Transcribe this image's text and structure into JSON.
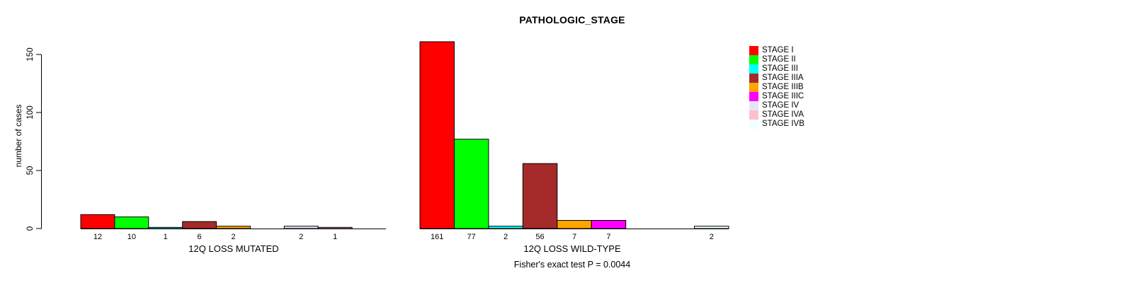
{
  "chart_data": {
    "type": "bar",
    "title": "PATHOLOGIC_STAGE",
    "ylabel": "number of cases",
    "ylim": [
      0,
      150
    ],
    "yticks": [
      0,
      50,
      100,
      150
    ],
    "grid": false,
    "legend_position": "right",
    "categories": [
      "STAGE I",
      "STAGE II",
      "STAGE III",
      "STAGE IIIA",
      "STAGE IIIB",
      "STAGE IIIC",
      "STAGE IV",
      "STAGE IVA",
      "STAGE IVB"
    ],
    "colors": [
      "#FF0000",
      "#00FF00",
      "#00FFFF",
      "#A52A2A",
      "#FFA500",
      "#FF00FF",
      "#E6E6FA",
      "#FFC0CB",
      "#F0FFFF"
    ],
    "groups": [
      {
        "label": "12Q LOSS MUTATED",
        "values": [
          12,
          10,
          1,
          6,
          2,
          0,
          2,
          1,
          0
        ]
      },
      {
        "label": "12Q LOSS WILD-TYPE",
        "values": [
          161,
          77,
          2,
          56,
          7,
          7,
          0,
          0,
          2
        ]
      }
    ],
    "annotation": "Fisher's exact test P = 0.0044",
    "axis_color": "#000000",
    "bar_border_color": "#000000"
  }
}
